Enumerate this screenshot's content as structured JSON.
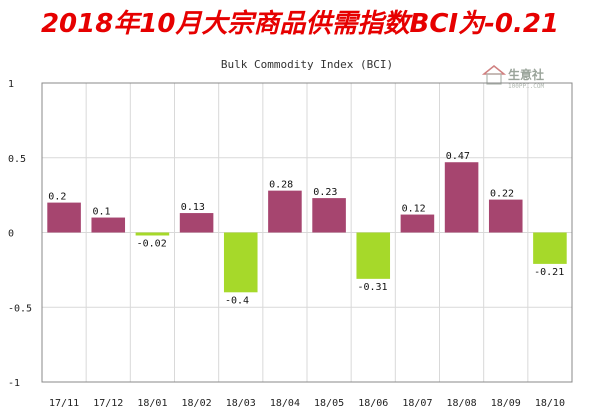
{
  "headline": "2018年10月大宗商品供需指数BCI为-0.21",
  "watermark": {
    "brand": "生意社",
    "site": "100PPI.COM"
  },
  "colors": {
    "positive": "#a6456f",
    "negative": "#a6d92a",
    "grid": "#d9d9d9",
    "axis": "#888888"
  },
  "chart_data": {
    "type": "bar",
    "title": "Bulk Commodity Index (BCI)",
    "categories": [
      "17/11",
      "17/12",
      "18/01",
      "18/02",
      "18/03",
      "18/04",
      "18/05",
      "18/06",
      "18/07",
      "18/08",
      "18/09",
      "18/10"
    ],
    "values": [
      0.2,
      0.1,
      -0.02,
      0.13,
      -0.4,
      0.28,
      0.23,
      -0.31,
      0.12,
      0.47,
      0.22,
      -0.21
    ],
    "data_labels": [
      "0.2",
      "0.1",
      "-0.02",
      "0.13",
      "-0.4",
      "0.28",
      "0.23",
      "-0.31",
      "0.12",
      "0.47",
      "0.22",
      "-0.21"
    ],
    "yticks": [
      1,
      0.5,
      0,
      -0.5,
      -1
    ],
    "ytick_labels": [
      "1",
      "0.5",
      "0",
      "-0.5",
      "-1"
    ],
    "ylim": [
      -1,
      1
    ],
    "grid": true,
    "legend": "none"
  }
}
